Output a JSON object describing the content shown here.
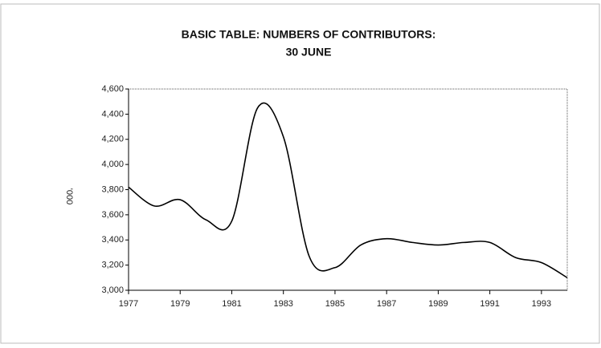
{
  "chart_data": {
    "type": "line",
    "title": [
      "BASIC TABLE: NUMBERS OF CONTRIBUTORS:",
      "30 JUNE"
    ],
    "y_label": "'000",
    "x": [
      1977,
      1978,
      1979,
      1980,
      1981,
      1982,
      1983,
      1984,
      1985,
      1986,
      1987,
      1988,
      1989,
      1990,
      1991,
      1992,
      1993,
      1994
    ],
    "series": [
      {
        "name": "Contributors",
        "color": "#000000",
        "values": [
          3820,
          3670,
          3720,
          3560,
          3550,
          4450,
          4220,
          3270,
          3180,
          3360,
          3410,
          3380,
          3360,
          3380,
          3380,
          3260,
          3220,
          3100
        ]
      }
    ],
    "xlim": [
      1977,
      1994
    ],
    "xticks": [
      1977,
      1979,
      1981,
      1983,
      1985,
      1987,
      1989,
      1991,
      1993
    ],
    "ylim": [
      3000,
      4600
    ],
    "yticks": [
      {
        "value": 3000,
        "label": "3,000"
      },
      {
        "value": 3200,
        "label": "3,200"
      },
      {
        "value": 3400,
        "label": "3,400"
      },
      {
        "value": 3600,
        "label": "3,600"
      },
      {
        "value": 3800,
        "label": "3,800"
      },
      {
        "value": 4000,
        "label": "4,000"
      },
      {
        "value": 4200,
        "label": "4,200"
      },
      {
        "value": 4400,
        "label": "4,400"
      },
      {
        "value": 4600,
        "label": "4,600"
      }
    ],
    "grid": false
  }
}
